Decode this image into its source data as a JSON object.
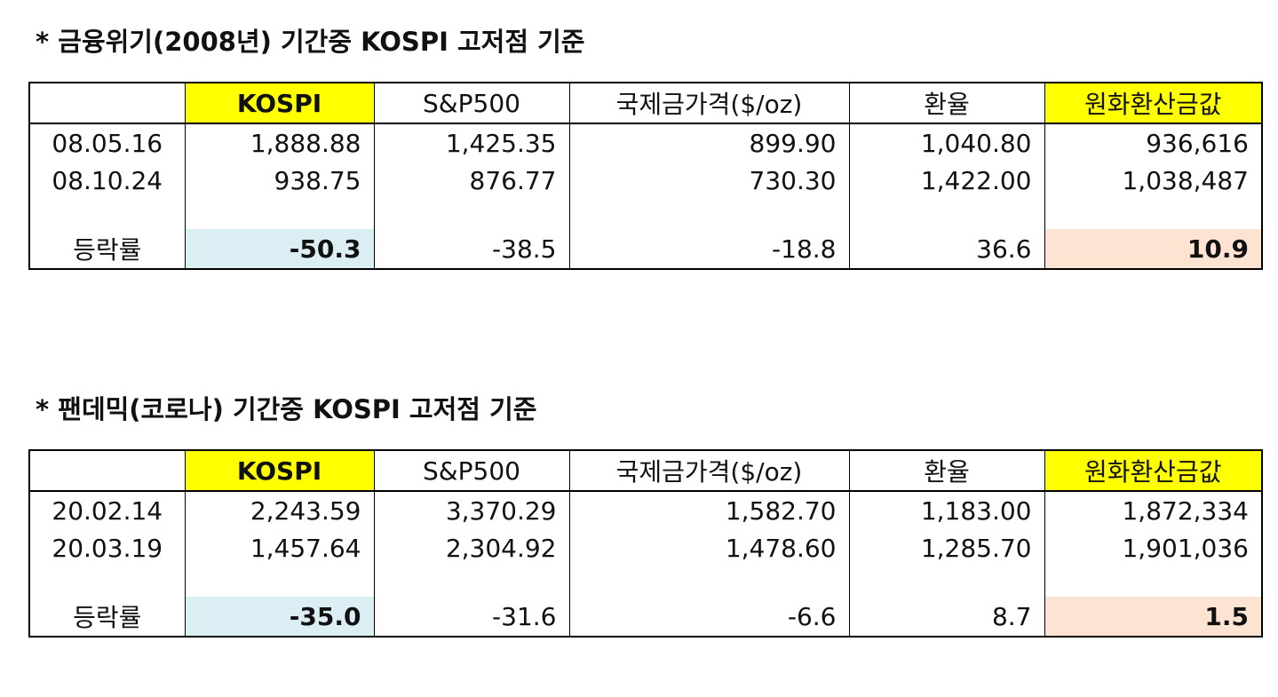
{
  "sections": [
    {
      "title": "* 금융위기(2008년) 기간중 KOSPI 고저점 기준",
      "table": {
        "header": [
          "KOSPI",
          "S&P500",
          "국제금가격($/oz)",
          "환율",
          "원화환산금값"
        ],
        "rows": [
          [
            "08.05.16",
            "1,888.88",
            "1,425.35",
            "899.90",
            "1,040.80",
            "936,616"
          ],
          [
            "08.10.24",
            "938.75",
            "876.77",
            "730.30",
            "1,422.00",
            "1,038,487"
          ]
        ],
        "change": [
          "등락률",
          "-50.3",
          "-38.5",
          "-18.8",
          "36.6",
          "10.9"
        ]
      }
    },
    {
      "title": "* 팬데믹(코로나) 기간중 KOSPI 고저점 기준",
      "table": {
        "header": [
          "KOSPI",
          "S&P500",
          "국제금가격($/oz)",
          "환율",
          "원화환산금값"
        ],
        "rows": [
          [
            "20.02.14",
            "2,243.59",
            "3,370.29",
            "1,582.70",
            "1,183.00",
            "1,872,334"
          ],
          [
            "20.03.19",
            "1,457.64",
            "2,304.92",
            "1,478.60",
            "1,285.70",
            "1,901,036"
          ]
        ],
        "change": [
          "등락률",
          "-35.0",
          "-31.6",
          "-6.6",
          "8.7",
          "1.5"
        ]
      }
    }
  ]
}
